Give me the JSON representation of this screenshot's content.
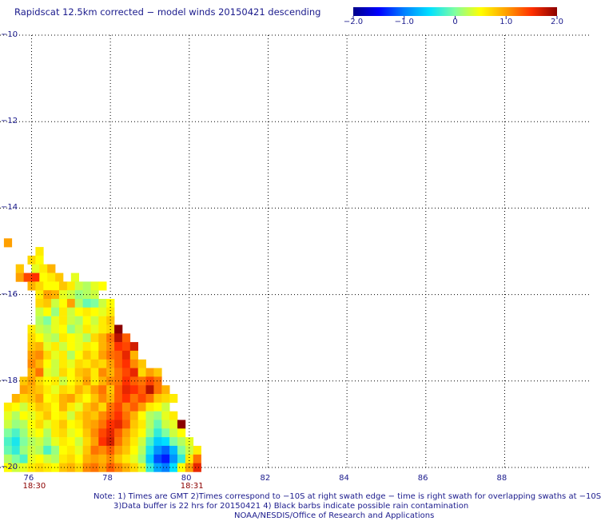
{
  "title": "Rapidscat 12.5km corrected − model winds 20150421 descending",
  "colorbar": {
    "labels": [
      "−2.0",
      "−1.0",
      "0",
      "1.0",
      "2.0"
    ],
    "values": [
      -2.0,
      -1.0,
      0,
      1.0,
      2.0
    ],
    "range": [
      -2.0,
      2.0
    ],
    "colors": [
      "#00008b",
      "#0000ff",
      "#0080ff",
      "#00e0ff",
      "#80ffa0",
      "#ffff00",
      "#ffa000",
      "#ff3000",
      "#8b0000"
    ]
  },
  "notes": {
    "line1": "Note: 1) Times are GMT 2)Times correspond to −10S at right swath edge − time is right swath for overlapping swaths at −10S",
    "line2": "3)Data buffer is 22 hrs for 20150421 4) Black barbs indicate possible rain contamination",
    "line3": "NOAA/NESDIS/Office of Research and Applications"
  },
  "time_labels": [
    {
      "lon": 76,
      "text": "18:30"
    },
    {
      "lon": 80,
      "text": "18:31"
    }
  ],
  "chart_data": {
    "type": "heatmap",
    "title": "Rapidscat 12.5km corrected − model winds 20150421 descending",
    "xlabel": "",
    "ylabel": "",
    "xlim": [
      75.2,
      90.2
    ],
    "ylim": [
      -20,
      -10
    ],
    "x_ticks": [
      76,
      78,
      80,
      82,
      84,
      86,
      88
    ],
    "x_tick_labels": [
      "76",
      "78",
      "80",
      "82",
      "84",
      "86",
      "88"
    ],
    "y_ticks": [
      -10,
      -12,
      -14,
      -16,
      -18,
      -20
    ],
    "y_tick_labels": [
      "−10",
      "−12",
      "−14",
      "−16",
      "−18",
      "−20"
    ],
    "grid": true,
    "cell_size_deg": 0.2,
    "value_range": [
      -2.0,
      2.0
    ],
    "rows_note": "each row: lat = latitude of row top, lon0 = longitude of first cell, values = wind difference per 0.2 deg cell",
    "rows": [
      {
        "lat": -14.7,
        "lon0": 75.3,
        "values": [
          1.0
        ]
      },
      {
        "lat": -14.9,
        "lon0": 76.1,
        "values": [
          0.6
        ]
      },
      {
        "lat": -15.1,
        "lon0": 75.9,
        "values": [
          0.7,
          0.5
        ]
      },
      {
        "lat": -15.3,
        "lon0": 75.6,
        "values": [
          0.8,
          null,
          0.4,
          0.6,
          0.9
        ]
      },
      {
        "lat": -15.5,
        "lon0": 75.6,
        "values": [
          1.0,
          1.4,
          1.5,
          0.5,
          0.6,
          0.8,
          null,
          0.4
        ]
      },
      {
        "lat": -15.7,
        "lon0": 75.9,
        "values": [
          0.9,
          0.7,
          0.5,
          0.5,
          0.8,
          0.6,
          0.3,
          0.2,
          0.4,
          0.5
        ]
      },
      {
        "lat": -15.9,
        "lon0": 76.1,
        "values": [
          0.6,
          1.0,
          0.9,
          0.4,
          0.3,
          0.1,
          0.2,
          0.3
        ]
      },
      {
        "lat": -16.1,
        "lon0": 76.1,
        "values": [
          0.7,
          0.8,
          0.3,
          0.5,
          1.0,
          0.2,
          -0.1,
          0.0,
          0.3,
          0.5
        ]
      },
      {
        "lat": -16.3,
        "lon0": 76.1,
        "values": [
          0.3,
          0.5,
          0.1,
          0.6,
          0.3,
          0.5,
          0.6,
          0.5,
          0.4,
          0.6
        ]
      },
      {
        "lat": -16.5,
        "lon0": 76.1,
        "values": [
          0.2,
          0.0,
          0.4,
          0.6,
          0.3,
          0.2,
          0.5,
          0.3,
          0.6,
          0.8
        ]
      },
      {
        "lat": -16.7,
        "lon0": 75.9,
        "values": [
          0.6,
          0.3,
          0.2,
          0.4,
          0.5,
          0.1,
          0.3,
          0.6,
          0.4,
          0.6,
          0.7,
          2.0
        ]
      },
      {
        "lat": -16.9,
        "lon0": 75.9,
        "values": [
          0.7,
          0.5,
          0.3,
          0.2,
          0.6,
          0.5,
          0.4,
          0.2,
          0.7,
          0.9,
          1.2,
          1.8,
          1.3
        ]
      },
      {
        "lat": -17.1,
        "lon0": 75.9,
        "values": [
          0.8,
          0.9,
          0.4,
          0.6,
          0.3,
          0.5,
          0.4,
          0.6,
          0.5,
          0.9,
          1.1,
          1.5,
          1.4,
          1.7
        ]
      },
      {
        "lat": -17.3,
        "lon0": 75.9,
        "values": [
          1.0,
          1.1,
          0.7,
          0.4,
          0.6,
          0.2,
          0.5,
          0.8,
          0.6,
          1.0,
          1.2,
          1.3,
          1.6,
          0.9
        ]
      },
      {
        "lat": -17.5,
        "lon0": 75.9,
        "values": [
          1.1,
          0.9,
          0.5,
          0.3,
          0.6,
          0.4,
          0.7,
          0.6,
          0.8,
          0.7,
          1.0,
          1.3,
          1.5,
          1.1,
          0.8
        ]
      },
      {
        "lat": -17.7,
        "lon0": 75.9,
        "values": [
          0.9,
          1.2,
          0.4,
          0.3,
          0.7,
          0.5,
          0.8,
          0.9,
          0.6,
          1.1,
          0.9,
          1.2,
          1.4,
          1.6,
          0.7,
          1.0,
          0.8
        ]
      },
      {
        "lat": -17.9,
        "lon0": 75.7,
        "values": [
          0.8,
          1.0,
          0.7,
          0.5,
          0.6,
          0.3,
          0.5,
          0.7,
          1.0,
          0.6,
          0.9,
          1.1,
          1.2,
          1.5,
          1.3,
          1.2,
          1.4,
          1.2
        ]
      },
      {
        "lat": -18.1,
        "lon0": 75.7,
        "values": [
          1.0,
          0.9,
          0.8,
          0.6,
          0.4,
          0.7,
          0.6,
          0.9,
          0.7,
          1.0,
          1.2,
          0.8,
          1.3,
          1.6,
          1.5,
          1.3,
          1.8,
          1.2,
          0.9
        ]
      },
      {
        "lat": -18.3,
        "lon0": 75.5,
        "values": [
          0.9,
          0.7,
          0.8,
          1.0,
          0.5,
          0.6,
          0.9,
          1.0,
          0.7,
          0.5,
          0.8,
          1.1,
          0.9,
          1.3,
          1.5,
          1.2,
          1.4,
          1.2,
          0.8,
          0.7,
          0.6
        ]
      },
      {
        "lat": -18.5,
        "lon0": 75.3,
        "values": [
          0.6,
          0.5,
          0.3,
          0.6,
          0.8,
          0.7,
          0.5,
          0.9,
          0.6,
          0.4,
          0.8,
          1.0,
          0.7,
          1.2,
          1.4,
          1.1,
          1.3,
          1.0,
          0.6,
          0.5,
          0.3
        ]
      },
      {
        "lat": -18.7,
        "lon0": 75.3,
        "values": [
          0.4,
          0.2,
          0.5,
          0.4,
          0.6,
          0.8,
          0.5,
          0.6,
          0.3,
          0.7,
          0.9,
          0.8,
          1.1,
          1.3,
          1.5,
          1.2,
          0.9,
          0.5,
          0.2,
          0.1,
          0.4,
          0.6
        ]
      },
      {
        "lat": -18.9,
        "lon0": 75.3,
        "values": [
          0.3,
          0.1,
          0.2,
          0.5,
          0.7,
          0.4,
          0.6,
          0.8,
          0.5,
          0.6,
          0.9,
          1.0,
          1.2,
          1.5,
          1.6,
          1.3,
          0.8,
          0.6,
          0.2,
          -0.1,
          0.3,
          0.4,
          2.0
        ]
      },
      {
        "lat": -19.1,
        "lon0": 75.3,
        "values": [
          0.0,
          -0.2,
          0.1,
          0.4,
          0.5,
          0.2,
          0.6,
          0.7,
          0.4,
          0.5,
          0.8,
          1.1,
          1.4,
          1.6,
          1.3,
          1.0,
          0.7,
          0.5,
          0.1,
          -0.3,
          0.0,
          0.3,
          0.5
        ]
      },
      {
        "lat": -19.3,
        "lon0": 75.3,
        "values": [
          -0.2,
          -0.4,
          0.0,
          0.2,
          0.3,
          0.1,
          0.4,
          0.6,
          0.5,
          0.3,
          0.7,
          1.0,
          1.5,
          1.7,
          1.2,
          0.9,
          0.6,
          0.3,
          -0.2,
          -0.6,
          -0.5,
          0.0,
          0.2,
          0.4
        ]
      },
      {
        "lat": -19.5,
        "lon0": 75.3,
        "values": [
          -0.1,
          -0.3,
          0.1,
          0.3,
          0.2,
          -0.2,
          0.1,
          0.5,
          0.6,
          0.4,
          0.8,
          1.2,
          1.1,
          1.3,
          1.0,
          0.8,
          0.5,
          0.2,
          -0.4,
          -0.9,
          -1.1,
          -0.7,
          0.0,
          0.3,
          0.6
        ]
      },
      {
        "lat": -19.7,
        "lon0": 75.3,
        "values": [
          0.2,
          0.0,
          -0.2,
          0.4,
          0.5,
          0.3,
          0.2,
          0.6,
          0.7,
          0.5,
          0.9,
          1.0,
          0.9,
          1.1,
          0.8,
          0.6,
          0.4,
          0.1,
          -0.6,
          -1.2,
          -1.4,
          -0.9,
          -0.3,
          0.6,
          1.2
        ]
      },
      {
        "lat": -19.9,
        "lon0": 75.3,
        "values": [
          0.5,
          0.3,
          0.4,
          0.6,
          0.7,
          0.6,
          0.5,
          0.8,
          0.9,
          0.7,
          1.1,
          1.2,
          1.0,
          1.3,
          1.1,
          0.9,
          0.7,
          0.4,
          -0.3,
          -0.8,
          -1.0,
          -0.5,
          0.5,
          1.0,
          1.6
        ]
      }
    ]
  }
}
